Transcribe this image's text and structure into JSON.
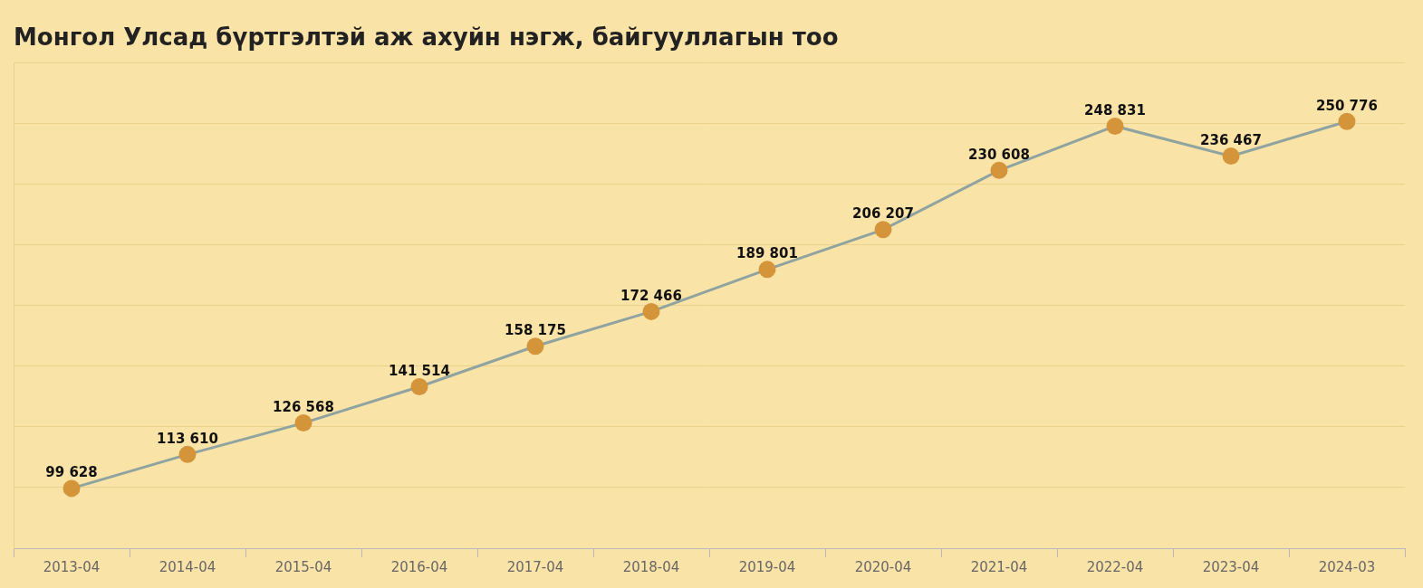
{
  "chart_data": {
    "type": "line",
    "title": "Монгол Улсад бүртгэлтэй аж ахуйн нэгж, байгууллагын тоо",
    "categories": [
      "2013-04",
      "2014-04",
      "2015-04",
      "2016-04",
      "2017-04",
      "2018-04",
      "2019-04",
      "2020-04",
      "2021-04",
      "2022-04",
      "2023-04",
      "2024-03"
    ],
    "values": [
      99628,
      113610,
      126568,
      141514,
      158175,
      172466,
      189801,
      206207,
      230608,
      248831,
      236467,
      250776
    ],
    "value_labels": [
      "99 628",
      "113 610",
      "126 568",
      "141 514",
      "158 175",
      "172 466",
      "189 801",
      "206 207",
      "230 608",
      "248 831",
      "236 467",
      "250 776"
    ],
    "color": "#8fa3a0",
    "marker": "circle",
    "line_style": "solid",
    "ylim": [
      75000,
      275000
    ],
    "yticks": [
      75000,
      100000,
      125000,
      150000,
      175000,
      200000,
      225000,
      250000,
      275000
    ],
    "grid": true,
    "data_labels": true,
    "tick_labels": "x"
  }
}
